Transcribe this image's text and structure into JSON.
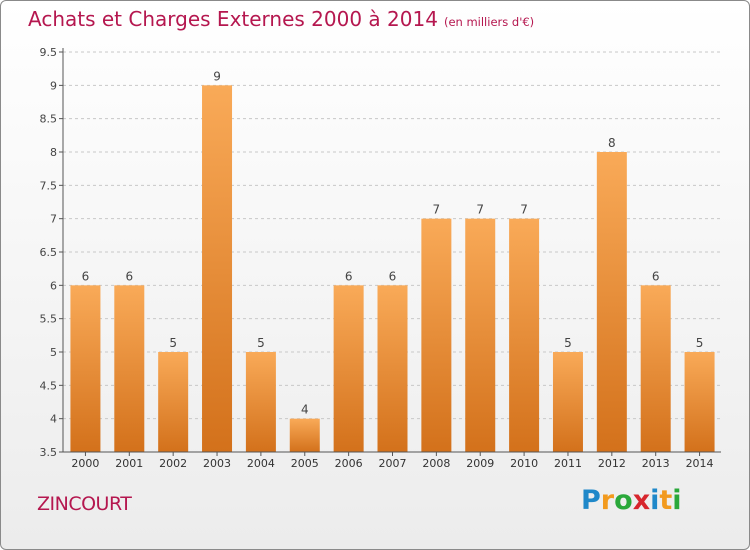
{
  "title": "Achats et Charges Externes 2000 à 2014",
  "subtitle": "(en milliers d'€)",
  "commune": "ZINCOURT",
  "logo": {
    "text": "Proxiti",
    "letters": [
      {
        "ch": "P",
        "color": "#1f88c9"
      },
      {
        "ch": "r",
        "color": "#f29a1d"
      },
      {
        "ch": "o",
        "color": "#2aa83a"
      },
      {
        "ch": "x",
        "color": "#d7262d"
      },
      {
        "ch": "i",
        "color": "#1f88c9"
      },
      {
        "ch": "t",
        "color": "#f29a1d"
      },
      {
        "ch": "i",
        "color": "#2aa83a"
      }
    ]
  },
  "colors": {
    "bar_top": "#f9aa58",
    "bar_bottom": "#d3711b",
    "title": "#b5174f",
    "axis": "#555555",
    "grid": "#c8c8c8"
  },
  "chart_data": {
    "type": "bar",
    "categories": [
      "2000",
      "2001",
      "2002",
      "2003",
      "2004",
      "2005",
      "2006",
      "2007",
      "2008",
      "2009",
      "2010",
      "2011",
      "2012",
      "2013",
      "2014"
    ],
    "values": [
      6,
      6,
      5,
      9,
      5,
      4,
      6,
      6,
      7,
      7,
      7,
      5,
      8,
      6,
      5
    ],
    "data_labels": [
      "6",
      "6",
      "5",
      "9",
      "5",
      "4",
      "6",
      "6",
      "7",
      "7",
      "7",
      "5",
      "8",
      "6",
      "5"
    ],
    "ylim": [
      3.5,
      9.5
    ],
    "yticks": [
      3.5,
      4,
      4.5,
      5,
      5.5,
      6,
      6.5,
      7,
      7.5,
      8,
      8.5,
      9,
      9.5
    ],
    "ytick_labels": [
      "3.5",
      "4",
      "4.5",
      "5",
      "5.5",
      "6",
      "6.5",
      "7",
      "7.5",
      "8",
      "8.5",
      "9",
      "9.5"
    ],
    "grid": true,
    "title": "Achats et Charges Externes 2000 à 2014",
    "xlabel": "",
    "ylabel": ""
  }
}
